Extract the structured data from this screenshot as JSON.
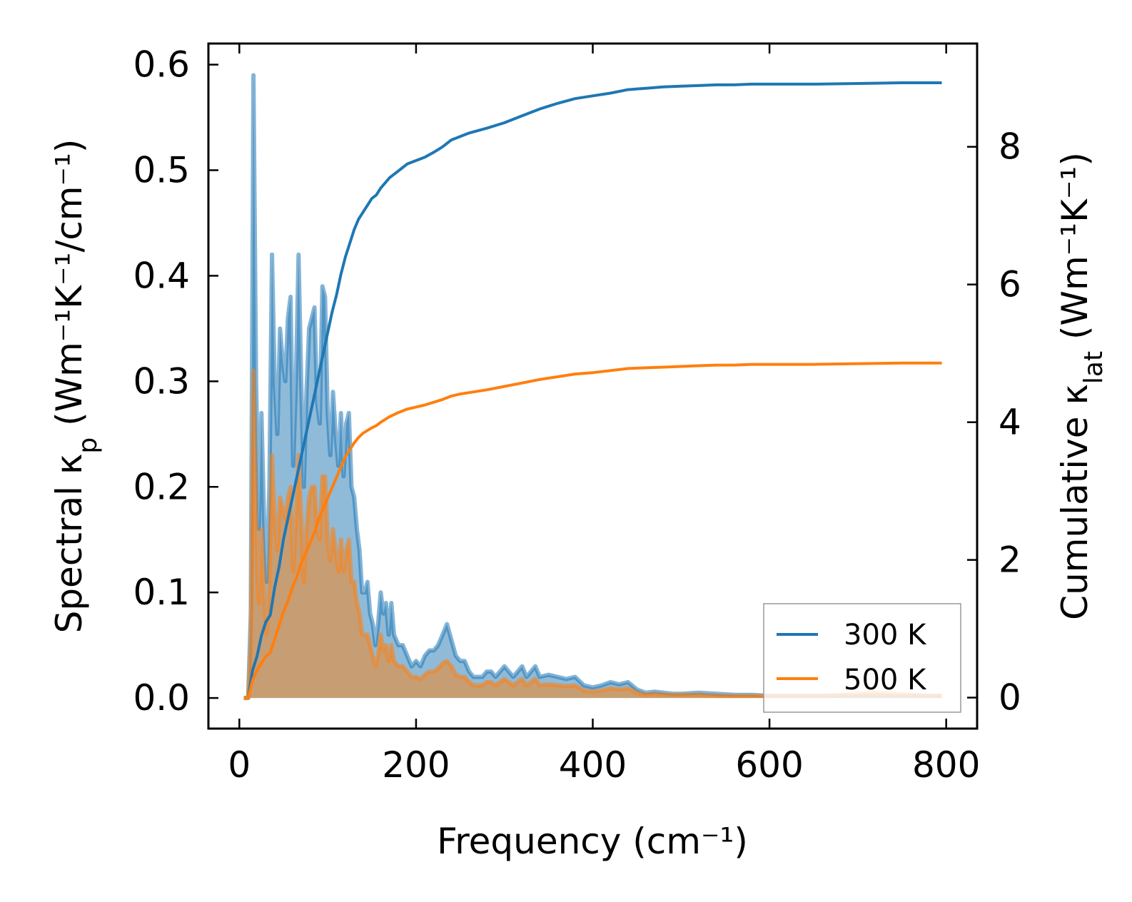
{
  "chart_data": {
    "type": "line",
    "title": "",
    "xlabel": "Frequency (cm⁻¹)",
    "ylabel_left": {
      "main": "Spectral κ",
      "sub": "p",
      "units": " (Wm⁻¹K⁻¹/cm⁻¹)"
    },
    "ylabel_right": {
      "main": "Cumulative κ",
      "sub": "lat",
      "units": " (Wm⁻¹K⁻¹)"
    },
    "xlim": [
      -35,
      835
    ],
    "ylim_left": [
      -0.029,
      0.62
    ],
    "ylim_right": [
      -0.45,
      9.5
    ],
    "xticks": [
      0,
      200,
      400,
      600,
      800
    ],
    "yticks_left": [
      0.0,
      0.1,
      0.2,
      0.3,
      0.4,
      0.5,
      0.6
    ],
    "yticks_right": [
      0,
      2,
      4,
      6,
      8
    ],
    "xtick_labels": [
      "0",
      "200",
      "400",
      "600",
      "800"
    ],
    "ytick_left_labels": [
      "0.0",
      "0.1",
      "0.2",
      "0.3",
      "0.4",
      "0.5",
      "0.6"
    ],
    "ytick_right_labels": [
      "0",
      "2",
      "4",
      "6",
      "8"
    ],
    "legend": {
      "position": "lower-right",
      "entries": [
        "300 K",
        "500 K"
      ]
    },
    "colors": {
      "300K": "#1f77b4",
      "500K": "#ff7f0e"
    },
    "spectral": {
      "300K": {
        "x": [
          5,
          10,
          13,
          16,
          19,
          22,
          25,
          28,
          31,
          34,
          37,
          40,
          43,
          46,
          49,
          52,
          55,
          58,
          61,
          64,
          67,
          70,
          73,
          76,
          79,
          82,
          85,
          88,
          91,
          94,
          97,
          100,
          103,
          106,
          109,
          112,
          115,
          118,
          121,
          124,
          127,
          130,
          133,
          136,
          139,
          142,
          145,
          148,
          151,
          154,
          157,
          160,
          163,
          166,
          169,
          172,
          175,
          180,
          185,
          190,
          195,
          200,
          205,
          210,
          215,
          220,
          225,
          230,
          235,
          240,
          245,
          250,
          255,
          260,
          265,
          270,
          275,
          280,
          285,
          290,
          295,
          300,
          305,
          310,
          315,
          320,
          325,
          330,
          335,
          340,
          350,
          360,
          370,
          380,
          390,
          400,
          410,
          420,
          430,
          440,
          450,
          460,
          470,
          480,
          490,
          500,
          520,
          540,
          560,
          580,
          600,
          620,
          640,
          660,
          680,
          700,
          720,
          740,
          760,
          780,
          795
        ],
        "y": [
          0.0,
          0.0,
          0.08,
          0.59,
          0.3,
          0.16,
          0.27,
          0.17,
          0.11,
          0.2,
          0.42,
          0.3,
          0.25,
          0.35,
          0.32,
          0.3,
          0.36,
          0.38,
          0.22,
          0.3,
          0.42,
          0.3,
          0.2,
          0.29,
          0.35,
          0.36,
          0.37,
          0.28,
          0.26,
          0.39,
          0.38,
          0.27,
          0.23,
          0.29,
          0.25,
          0.22,
          0.27,
          0.21,
          0.26,
          0.27,
          0.2,
          0.19,
          0.16,
          0.14,
          0.1,
          0.1,
          0.11,
          0.08,
          0.07,
          0.05,
          0.07,
          0.1,
          0.08,
          0.09,
          0.06,
          0.09,
          0.06,
          0.05,
          0.05,
          0.04,
          0.03,
          0.035,
          0.03,
          0.04,
          0.045,
          0.045,
          0.05,
          0.06,
          0.07,
          0.055,
          0.04,
          0.035,
          0.035,
          0.025,
          0.02,
          0.02,
          0.02,
          0.025,
          0.025,
          0.02,
          0.025,
          0.03,
          0.025,
          0.02,
          0.025,
          0.03,
          0.02,
          0.025,
          0.03,
          0.02,
          0.022,
          0.02,
          0.018,
          0.02,
          0.012,
          0.01,
          0.012,
          0.015,
          0.013,
          0.015,
          0.008,
          0.005,
          0.006,
          0.005,
          0.004,
          0.004,
          0.005,
          0.004,
          0.003,
          0.003,
          0.002,
          0.002,
          0.002,
          0.002,
          0.002,
          0.002,
          0.002,
          0.002,
          0.002,
          0.002,
          0.002
        ]
      },
      "500K": {
        "x": [
          5,
          10,
          13,
          16,
          19,
          22,
          25,
          28,
          31,
          34,
          37,
          40,
          43,
          46,
          49,
          52,
          55,
          58,
          61,
          64,
          67,
          70,
          73,
          76,
          79,
          82,
          85,
          88,
          91,
          94,
          97,
          100,
          103,
          106,
          109,
          112,
          115,
          118,
          121,
          124,
          127,
          130,
          133,
          136,
          139,
          142,
          145,
          148,
          151,
          154,
          157,
          160,
          163,
          166,
          169,
          172,
          175,
          180,
          185,
          190,
          195,
          200,
          205,
          210,
          215,
          220,
          225,
          230,
          235,
          240,
          245,
          250,
          255,
          260,
          265,
          270,
          275,
          280,
          285,
          290,
          295,
          300,
          305,
          310,
          315,
          320,
          325,
          330,
          335,
          340,
          350,
          360,
          370,
          380,
          390,
          400,
          410,
          420,
          430,
          440,
          450,
          460,
          470,
          480,
          490,
          500,
          520,
          540,
          560,
          580,
          600,
          620,
          640,
          660,
          680,
          700,
          720,
          740,
          760,
          780,
          795
        ],
        "y": [
          0.0,
          0.0,
          0.05,
          0.31,
          0.17,
          0.09,
          0.16,
          0.1,
          0.06,
          0.11,
          0.23,
          0.17,
          0.14,
          0.19,
          0.18,
          0.17,
          0.19,
          0.2,
          0.12,
          0.17,
          0.23,
          0.17,
          0.11,
          0.16,
          0.19,
          0.2,
          0.2,
          0.16,
          0.15,
          0.21,
          0.21,
          0.15,
          0.13,
          0.16,
          0.14,
          0.12,
          0.15,
          0.12,
          0.14,
          0.15,
          0.11,
          0.11,
          0.09,
          0.08,
          0.06,
          0.06,
          0.06,
          0.05,
          0.04,
          0.03,
          0.04,
          0.06,
          0.045,
          0.05,
          0.035,
          0.05,
          0.035,
          0.03,
          0.03,
          0.025,
          0.02,
          0.02,
          0.018,
          0.022,
          0.025,
          0.025,
          0.028,
          0.033,
          0.035,
          0.03,
          0.022,
          0.02,
          0.02,
          0.015,
          0.012,
          0.012,
          0.012,
          0.015,
          0.015,
          0.012,
          0.015,
          0.018,
          0.015,
          0.012,
          0.015,
          0.018,
          0.012,
          0.015,
          0.018,
          0.012,
          0.013,
          0.012,
          0.011,
          0.012,
          0.007,
          0.006,
          0.007,
          0.009,
          0.008,
          0.009,
          0.005,
          0.003,
          0.004,
          0.003,
          0.003,
          0.003,
          0.003,
          0.002,
          0.002,
          0.002,
          0.002,
          0.002,
          0.002,
          0.002,
          0.003,
          0.004,
          0.005,
          0.004,
          0.003,
          0.002,
          0.002
        ]
      }
    },
    "cumulative": {
      "300K": {
        "x": [
          5,
          10,
          15,
          20,
          25,
          30,
          35,
          40,
          45,
          50,
          55,
          60,
          65,
          70,
          75,
          80,
          85,
          90,
          95,
          100,
          105,
          110,
          115,
          120,
          125,
          130,
          135,
          140,
          145,
          150,
          155,
          160,
          170,
          180,
          190,
          200,
          210,
          220,
          230,
          240,
          250,
          260,
          280,
          300,
          320,
          340,
          360,
          380,
          400,
          420,
          440,
          460,
          480,
          500,
          520,
          540,
          560,
          580,
          600,
          650,
          700,
          750,
          795
        ],
        "y": [
          0.0,
          0.0,
          0.4,
          0.6,
          0.9,
          1.1,
          1.2,
          1.6,
          1.9,
          2.3,
          2.6,
          2.9,
          3.2,
          3.5,
          3.8,
          4.1,
          4.4,
          4.7,
          5.0,
          5.3,
          5.6,
          5.85,
          6.15,
          6.4,
          6.6,
          6.8,
          6.95,
          7.05,
          7.15,
          7.25,
          7.3,
          7.4,
          7.55,
          7.65,
          7.75,
          7.8,
          7.85,
          7.92,
          8.0,
          8.1,
          8.15,
          8.2,
          8.27,
          8.35,
          8.45,
          8.55,
          8.63,
          8.7,
          8.74,
          8.78,
          8.83,
          8.85,
          8.87,
          8.88,
          8.89,
          8.9,
          8.9,
          8.91,
          8.91,
          8.91,
          8.92,
          8.93,
          8.93
        ]
      },
      "500K": {
        "x": [
          5,
          10,
          15,
          20,
          25,
          30,
          35,
          40,
          45,
          50,
          55,
          60,
          65,
          70,
          75,
          80,
          85,
          90,
          95,
          100,
          105,
          110,
          115,
          120,
          125,
          130,
          135,
          140,
          145,
          150,
          155,
          160,
          170,
          180,
          190,
          200,
          210,
          220,
          230,
          240,
          250,
          260,
          280,
          300,
          320,
          340,
          360,
          380,
          400,
          420,
          440,
          460,
          480,
          500,
          520,
          540,
          560,
          580,
          600,
          650,
          700,
          750,
          795
        ],
        "y": [
          0.0,
          0.0,
          0.25,
          0.4,
          0.5,
          0.6,
          0.65,
          0.85,
          1.05,
          1.25,
          1.4,
          1.6,
          1.75,
          1.95,
          2.1,
          2.25,
          2.4,
          2.6,
          2.75,
          2.9,
          3.05,
          3.2,
          3.35,
          3.5,
          3.6,
          3.7,
          3.78,
          3.84,
          3.88,
          3.92,
          3.95,
          4.0,
          4.08,
          4.14,
          4.19,
          4.22,
          4.25,
          4.29,
          4.33,
          4.38,
          4.41,
          4.43,
          4.47,
          4.52,
          4.57,
          4.62,
          4.66,
          4.7,
          4.72,
          4.75,
          4.78,
          4.79,
          4.8,
          4.81,
          4.82,
          4.83,
          4.83,
          4.84,
          4.84,
          4.84,
          4.85,
          4.86,
          4.86
        ]
      }
    }
  }
}
